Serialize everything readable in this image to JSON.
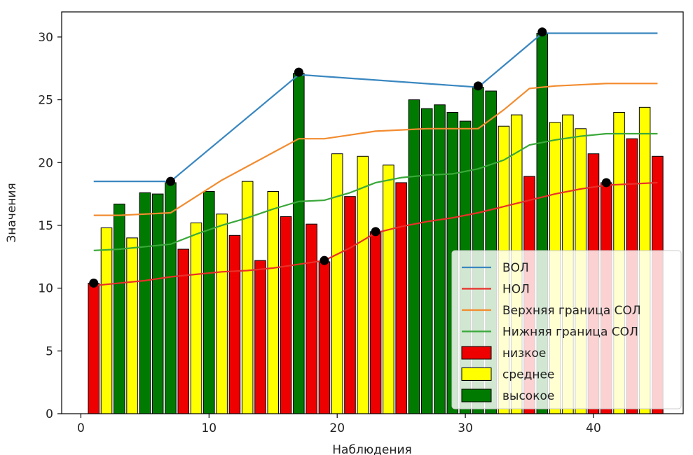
{
  "chart_data": {
    "type": "bar",
    "xlabel": "Наблюдения",
    "ylabel": "Значения",
    "xlim": [
      -1.5,
      47
    ],
    "ylim": [
      0,
      32
    ],
    "x_ticks": [
      0,
      10,
      20,
      30,
      40
    ],
    "y_ticks": [
      0,
      5,
      10,
      15,
      20,
      25,
      30
    ],
    "legend_position": "bottom-right",
    "bars": [
      {
        "x": 1,
        "value": 10.4,
        "category": "низкое"
      },
      {
        "x": 2,
        "value": 14.8,
        "category": "среднее"
      },
      {
        "x": 3,
        "value": 16.7,
        "category": "высокое"
      },
      {
        "x": 4,
        "value": 14.0,
        "category": "среднее"
      },
      {
        "x": 5,
        "value": 17.6,
        "category": "высокое"
      },
      {
        "x": 6,
        "value": 17.5,
        "category": "высокое"
      },
      {
        "x": 7,
        "value": 18.4,
        "category": "высокое"
      },
      {
        "x": 8,
        "value": 13.1,
        "category": "низкое"
      },
      {
        "x": 9,
        "value": 15.2,
        "category": "среднее"
      },
      {
        "x": 10,
        "value": 17.7,
        "category": "высокое"
      },
      {
        "x": 11,
        "value": 15.9,
        "category": "среднее"
      },
      {
        "x": 12,
        "value": 14.2,
        "category": "низкое"
      },
      {
        "x": 13,
        "value": 18.5,
        "category": "среднее"
      },
      {
        "x": 14,
        "value": 12.2,
        "category": "низкое"
      },
      {
        "x": 15,
        "value": 17.7,
        "category": "среднее"
      },
      {
        "x": 16,
        "value": 15.7,
        "category": "низкое"
      },
      {
        "x": 17,
        "value": 27.1,
        "category": "высокое"
      },
      {
        "x": 18,
        "value": 15.1,
        "category": "низкое"
      },
      {
        "x": 19,
        "value": 12.1,
        "category": "низкое"
      },
      {
        "x": 20,
        "value": 20.7,
        "category": "среднее"
      },
      {
        "x": 21,
        "value": 17.3,
        "category": "низкое"
      },
      {
        "x": 22,
        "value": 20.5,
        "category": "среднее"
      },
      {
        "x": 23,
        "value": 14.5,
        "category": "низкое"
      },
      {
        "x": 24,
        "value": 19.8,
        "category": "среднее"
      },
      {
        "x": 25,
        "value": 18.4,
        "category": "низкое"
      },
      {
        "x": 26,
        "value": 25.0,
        "category": "высокое"
      },
      {
        "x": 27,
        "value": 24.3,
        "category": "высокое"
      },
      {
        "x": 28,
        "value": 24.6,
        "category": "высокое"
      },
      {
        "x": 29,
        "value": 24.0,
        "category": "высокое"
      },
      {
        "x": 30,
        "value": 23.3,
        "category": "высокое"
      },
      {
        "x": 31,
        "value": 26.0,
        "category": "высокое"
      },
      {
        "x": 32,
        "value": 25.7,
        "category": "высокое"
      },
      {
        "x": 33,
        "value": 22.9,
        "category": "среднее"
      },
      {
        "x": 34,
        "value": 23.8,
        "category": "среднее"
      },
      {
        "x": 35,
        "value": 18.9,
        "category": "низкое"
      },
      {
        "x": 36,
        "value": 30.3,
        "category": "высокое"
      },
      {
        "x": 37,
        "value": 23.2,
        "category": "среднее"
      },
      {
        "x": 38,
        "value": 23.8,
        "category": "среднее"
      },
      {
        "x": 39,
        "value": 22.7,
        "category": "среднее"
      },
      {
        "x": 40,
        "value": 20.7,
        "category": "низкое"
      },
      {
        "x": 41,
        "value": 18.4,
        "category": "низкое"
      },
      {
        "x": 42,
        "value": 24.0,
        "category": "среднее"
      },
      {
        "x": 43,
        "value": 21.9,
        "category": "низкое"
      },
      {
        "x": 44,
        "value": 24.4,
        "category": "среднее"
      },
      {
        "x": 45,
        "value": 20.5,
        "category": "низкое"
      }
    ],
    "categories": [
      {
        "name": "низкое",
        "color": "#ee0000"
      },
      {
        "name": "среднее",
        "color": "#ffff00"
      },
      {
        "name": "высокое",
        "color": "#007a00"
      }
    ],
    "lines": [
      {
        "name": "ВОЛ",
        "color": "#3a87c0",
        "x": [
          1,
          7,
          17,
          31,
          36,
          45
        ],
        "y": [
          18.5,
          18.5,
          27.0,
          26.0,
          30.3,
          30.3
        ]
      },
      {
        "name": "НОЛ",
        "color": "#e8302a",
        "x": [
          1,
          3,
          5,
          7,
          9,
          11,
          13,
          15,
          17,
          19,
          21,
          23,
          25,
          27,
          29,
          31,
          33,
          35,
          37,
          39,
          41,
          43,
          45
        ],
        "y": [
          10.2,
          10.4,
          10.6,
          10.9,
          11.1,
          11.3,
          11.4,
          11.6,
          11.9,
          12.2,
          13.2,
          14.4,
          14.9,
          15.3,
          15.6,
          16.0,
          16.5,
          17.0,
          17.5,
          17.9,
          18.2,
          18.3,
          18.4
        ]
      },
      {
        "name": "Верхняя граница СОЛ",
        "color": "#f28c30",
        "x": [
          1,
          3,
          5,
          7,
          9,
          11,
          13,
          15,
          17,
          19,
          21,
          23,
          25,
          27,
          29,
          31,
          33,
          35,
          37,
          39,
          41,
          43,
          45
        ],
        "y": [
          15.8,
          15.8,
          15.9,
          16.0,
          17.3,
          18.6,
          19.7,
          20.8,
          21.9,
          21.9,
          22.2,
          22.5,
          22.6,
          22.7,
          22.7,
          22.7,
          24.2,
          25.9,
          26.1,
          26.2,
          26.3,
          26.3,
          26.3
        ]
      },
      {
        "name": "Нижняя граница СОЛ",
        "color": "#3aa83a",
        "x": [
          1,
          3,
          5,
          7,
          9,
          11,
          13,
          15,
          17,
          19,
          21,
          23,
          25,
          27,
          29,
          31,
          33,
          35,
          37,
          39,
          41,
          43,
          45
        ],
        "y": [
          13.0,
          13.1,
          13.3,
          13.5,
          14.3,
          15.0,
          15.6,
          16.3,
          16.9,
          17.0,
          17.6,
          18.4,
          18.8,
          19.0,
          19.1,
          19.5,
          20.2,
          21.4,
          21.8,
          22.1,
          22.3,
          22.3,
          22.3
        ]
      }
    ],
    "markers": {
      "x": [
        1,
        7,
        17,
        19,
        23,
        31,
        36,
        41
      ],
      "y": [
        10.4,
        18.5,
        27.2,
        12.2,
        14.5,
        26.1,
        30.4,
        18.4
      ],
      "color": "#000000"
    }
  }
}
